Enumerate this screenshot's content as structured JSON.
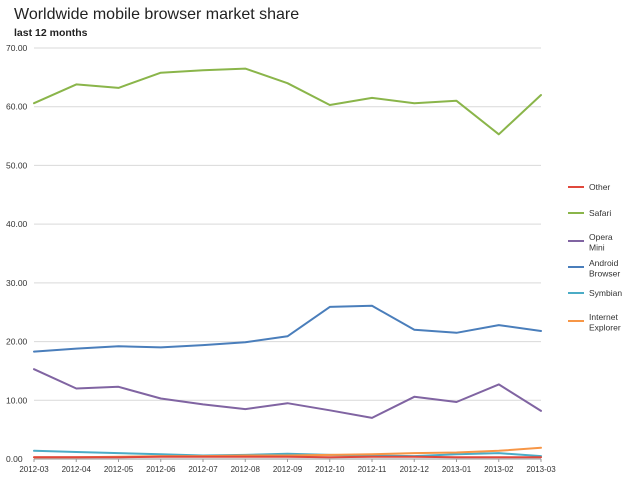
{
  "chart_data": {
    "type": "line",
    "title": "Worldwide mobile browser market share",
    "subtitle": "last 12 months",
    "xlabel": "",
    "ylabel": "",
    "categories": [
      "2012-03",
      "2012-04",
      "2012-05",
      "2012-06",
      "2012-07",
      "2012-08",
      "2012-09",
      "2012-10",
      "2012-11",
      "2012-12",
      "2013-01",
      "2013-02",
      "2013-03"
    ],
    "ylim": [
      0,
      70
    ],
    "yticks": [
      "0.00",
      "10.00",
      "20.00",
      "30.00",
      "40.00",
      "50.00",
      "60.00",
      "70.00"
    ],
    "grid": true,
    "legend_position": "right",
    "series": [
      {
        "name": "Other",
        "color": "#e0483c",
        "values": [
          0.3,
          0.3,
          0.3,
          0.4,
          0.4,
          0.4,
          0.4,
          0.3,
          0.4,
          0.4,
          0.3,
          0.3,
          0.3
        ]
      },
      {
        "name": "Safari",
        "color": "#8ab54a",
        "values": [
          60.6,
          63.8,
          63.2,
          65.8,
          66.2,
          66.5,
          64.0,
          60.3,
          61.5,
          60.6,
          61.0,
          55.3,
          62.0
        ]
      },
      {
        "name": "Opera Mini",
        "color": "#8064a2",
        "values": [
          15.3,
          12.0,
          12.3,
          10.3,
          9.3,
          8.5,
          9.5,
          8.3,
          7.0,
          10.6,
          9.7,
          12.7,
          8.2
        ]
      },
      {
        "name": "Android Browser",
        "color": "#4a7ebb",
        "values": [
          18.3,
          18.8,
          19.2,
          19.0,
          19.4,
          19.9,
          20.9,
          25.9,
          26.1,
          22.0,
          21.5,
          22.8,
          21.8
        ]
      },
      {
        "name": "Symbian",
        "color": "#4bacc6",
        "values": [
          1.4,
          1.2,
          1.0,
          0.8,
          0.6,
          0.7,
          0.9,
          0.7,
          0.6,
          0.5,
          0.8,
          1.0,
          0.5
        ]
      },
      {
        "name": "Internet Explorer",
        "color": "#f79646",
        "values": [
          0.3,
          0.3,
          0.4,
          0.5,
          0.5,
          0.6,
          0.6,
          0.7,
          0.8,
          1.0,
          1.1,
          1.4,
          1.9
        ]
      }
    ]
  }
}
